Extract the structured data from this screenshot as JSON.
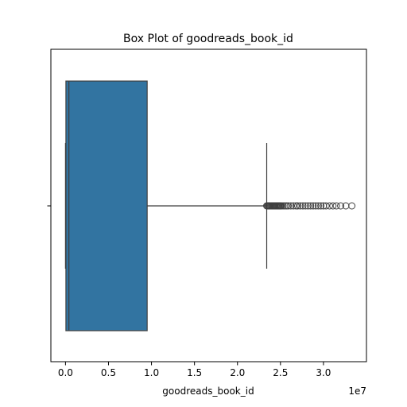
{
  "chart_data": {
    "type": "box",
    "orientation": "horizontal",
    "title": "Box Plot of goodreads_book_id",
    "xlabel": "goodreads_book_id",
    "ylabel": "",
    "offset_label": "1e7",
    "xlim": [
      -1700000,
      35000000
    ],
    "xticks": [
      0,
      5000000,
      10000000,
      15000000,
      20000000,
      25000000,
      30000000
    ],
    "xtick_labels": [
      "0.0",
      "0.5",
      "1.0",
      "1.5",
      "2.0",
      "2.5",
      "3.0"
    ],
    "box_color": "#3274a1",
    "line_color": "#3f3f3f",
    "grid": false,
    "stats": {
      "whisker_low": 1,
      "q1": 47000,
      "median": 394000,
      "q3": 9500000,
      "whisker_high": 23400000
    },
    "outliers": [
      23400000,
      23500000,
      23600000,
      23700000,
      23800000,
      23900000,
      24000000,
      24100000,
      24200000,
      24300000,
      24400000,
      24500000,
      24600000,
      24700000,
      24800000,
      24900000,
      25000000,
      25100000,
      25300000,
      25500000,
      25700000,
      25900000,
      26200000,
      26500000,
      26800000,
      27000000,
      27300000,
      27600000,
      27900000,
      28200000,
      28500000,
      28800000,
      29100000,
      29400000,
      29700000,
      30000000,
      30300000,
      30700000,
      31100000,
      31500000,
      32000000,
      32600000,
      33300000
    ]
  }
}
